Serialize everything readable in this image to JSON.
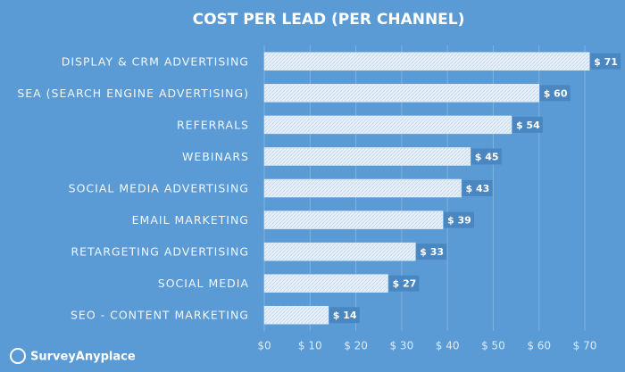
{
  "chart_data": {
    "type": "hbar",
    "title": "COST PER LEAD (PER CHANNEL)",
    "categories": [
      "DISPLAY & CRM ADVERTISING",
      "SEA (SEARCH ENGINE ADVERTISING)",
      "REFERRALS",
      "WEBINARS",
      "SOCIAL MEDIA ADVERTISING",
      "EMAIL MARKETING",
      "RETARGETING ADVERTISING",
      "SOCIAL MEDIA",
      "SEO - CONTENT MARKETING"
    ],
    "values": [
      71,
      60,
      54,
      45,
      43,
      39,
      33,
      27,
      14
    ],
    "value_labels": [
      "$ 71",
      "$ 60",
      "$ 54",
      "$ 45",
      "$ 43",
      "$ 39",
      "$ 33",
      "$ 27",
      "$ 14"
    ],
    "color": "#e3eef8",
    "xlim": [
      0,
      70
    ],
    "xticks": [
      {
        "value": 0,
        "label": "$0"
      },
      {
        "value": 10,
        "label": "$ 10"
      },
      {
        "value": 20,
        "label": "$ 20"
      },
      {
        "value": 30,
        "label": "$ 30"
      },
      {
        "value": 40,
        "label": "$ 40"
      },
      {
        "value": 50,
        "label": "$ 50"
      },
      {
        "value": 60,
        "label": "$ 60"
      },
      {
        "value": 70,
        "label": "$ 70"
      }
    ],
    "grid": true,
    "brand": "SurveyAnyplace"
  }
}
